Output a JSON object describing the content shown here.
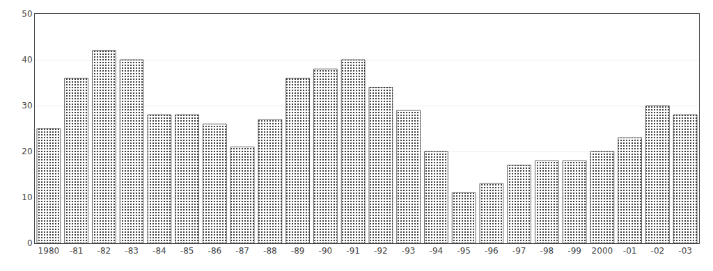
{
  "chart_data": {
    "type": "bar",
    "categories": [
      "1980",
      "-81",
      "-82",
      "-83",
      "-84",
      "-85",
      "-86",
      "-87",
      "-88",
      "-89",
      "-90",
      "-91",
      "-92",
      "-93",
      "-94",
      "-95",
      "-96",
      "-97",
      "-98",
      "-99",
      "2000",
      "-01",
      "-02",
      "-03"
    ],
    "values": [
      25,
      36,
      42,
      40,
      28,
      28,
      26,
      21,
      27,
      36,
      38,
      40,
      34,
      29,
      20,
      11,
      13,
      17,
      18,
      18,
      20,
      23,
      30,
      28
    ],
    "color": "#c8c8c8",
    "ylim": [
      0,
      50
    ],
    "yticks": [
      0,
      10,
      20,
      30,
      40,
      50
    ],
    "grid": true
  }
}
